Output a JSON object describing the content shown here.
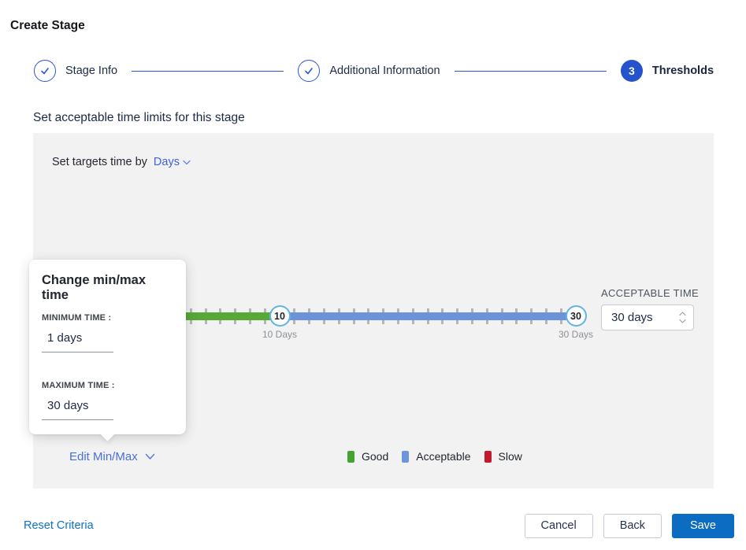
{
  "header": {
    "title": "Create Stage"
  },
  "stepper": {
    "steps": [
      {
        "label": "Stage Info",
        "state": "complete"
      },
      {
        "label": "Additional Information",
        "state": "complete"
      },
      {
        "label": "Thresholds",
        "state": "active",
        "number": "3"
      }
    ]
  },
  "section": {
    "heading": "Set acceptable time limits for this stage"
  },
  "panel": {
    "target_time_prefix": "Set targets time by",
    "target_time_unit": "Days",
    "slider": {
      "min_days": 10,
      "max_days": 30,
      "total_days": 30,
      "min_handle": "10",
      "max_handle": "30",
      "min_label": "10 Days",
      "max_label": "30 Days"
    },
    "acceptable_time": {
      "label": "ACCEPTABLE TIME",
      "value": "30 days"
    },
    "edit_minmax_label": "Edit Min/Max",
    "legend": [
      {
        "label": "Good",
        "color": "#43a432"
      },
      {
        "label": "Acceptable",
        "color": "#6d95dd"
      },
      {
        "label": "Slow",
        "color": "#c21b2e"
      }
    ]
  },
  "popup": {
    "title": "Change min/max time",
    "min_label": "MINIMUM TIME :",
    "min_value": "1 days",
    "max_label": "MAXIMUM TIME :",
    "max_value": "30 days"
  },
  "footer": {
    "reset_label": "Reset Criteria",
    "cancel_label": "Cancel",
    "back_label": "Back",
    "save_label": "Save"
  },
  "colors": {
    "accent_blue": "#2e56d4",
    "step_active_fill": "#2453cb",
    "link_blue": "#3d63de",
    "action_blue": "#0b6cc1",
    "slider_green": "#56a837",
    "slider_blue": "#6c93d9",
    "handle_ring": "#5fb4e4",
    "tick_gray": "#b5b5b9",
    "legend_good": "#43a432",
    "legend_acceptable": "#6d95dd",
    "legend_slow": "#c21b2e",
    "panel_bg": "#f2f2f2",
    "text_dark": "#1d2a46",
    "text_gray": "#8b9197"
  }
}
